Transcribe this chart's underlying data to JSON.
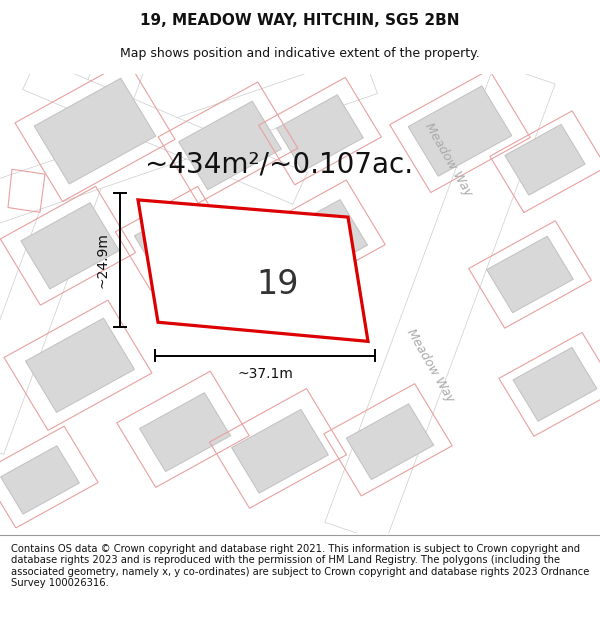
{
  "title": "19, MEADOW WAY, HITCHIN, SG5 2BN",
  "subtitle": "Map shows position and indicative extent of the property.",
  "footer": "Contains OS data © Crown copyright and database right 2021. This information is subject to Crown copyright and database rights 2023 and is reproduced with the permission of HM Land Registry. The polygons (including the associated geometry, namely x, y co-ordinates) are subject to Crown copyright and database rights 2023 Ordnance Survey 100026316.",
  "background_color": "#ffffff",
  "map_bg_color": "#f7f2f2",
  "road_fill": "#ffffff",
  "building_fill": "#d8d8d8",
  "building_edge": "#c0c0c0",
  "plot_color": "#e8a0a0",
  "highlight_color": "#dd0000",
  "area_text": "~434m²/~0.107ac.",
  "property_label": "19",
  "width_label": "~37.1m",
  "height_label": "~24.9m",
  "meadow_way_label": "Meadow Way",
  "title_fontsize": 11,
  "subtitle_fontsize": 9,
  "footer_fontsize": 7.2,
  "area_fontsize": 20,
  "property_label_fontsize": 24,
  "dim_fontsize": 10,
  "road_label_fontsize": 9,
  "title_color": "#111111",
  "dim_color": "#111111",
  "road_label_color": "#aaaaaa"
}
